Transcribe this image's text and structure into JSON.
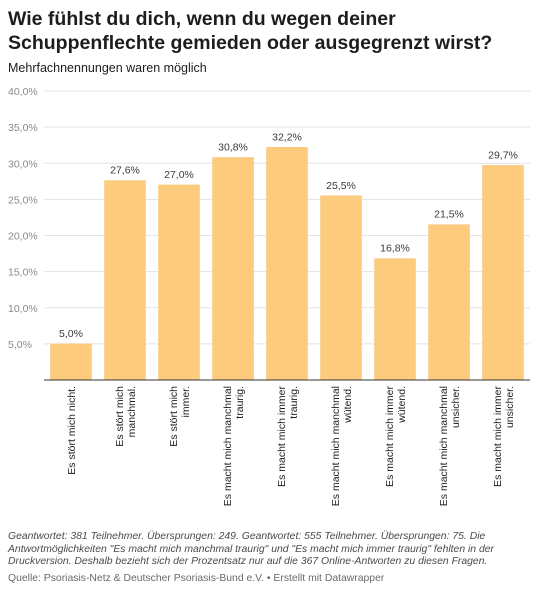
{
  "title": "Wie fühlst du dich, wenn du wegen deiner Schuppenflechte gemieden oder ausgegrenzt wirst?",
  "subtitle": "Mehrfachnennungen waren möglich",
  "notes": "Geantwortet: 381 Teilnehmer. Übersprungen: 249. Geantwortet: 555 Teilnehmer. Übersprungen: 75. Die Antwortmöglichkeiten \"Es macht mich manchmal traurig\" und \"Es macht mich immer traurig\" fehlten in der Druckversion. Deshalb bezieht sich der Prozentsatz nur auf die 367 Online-Antworten zu diesen Fragen.",
  "source": "Quelle: Psoriasis-Netz & Deutscher Psoriasis-Bund e.V. • Erstellt mit Datawrapper",
  "colors": {
    "bar": "#fdcb7e",
    "bar_stroke": "#f7c372",
    "grid": "#e3e3e3",
    "axis": "#333333",
    "tick": "#8a8a8a",
    "label": "#3a3a3a"
  },
  "chart_data": {
    "type": "bar",
    "categories": [
      [
        "Es stört mich nicht."
      ],
      [
        "Es stört mich",
        "manchmal."
      ],
      [
        "Es stört mich",
        "immer."
      ],
      [
        "Es macht mich manchmal",
        "traurig."
      ],
      [
        "Es macht mich immer",
        "traurig."
      ],
      [
        "Es macht mich manchmal",
        "wütend."
      ],
      [
        "Es macht mich immer",
        "wütend."
      ],
      [
        "Es macht mich manchmal",
        "unsicher."
      ],
      [
        "Es macht mich immer",
        "unsicher."
      ]
    ],
    "values": [
      5.0,
      27.6,
      27.0,
      30.8,
      32.2,
      25.5,
      16.8,
      21.5,
      29.7
    ],
    "value_labels": [
      "5,0%",
      "27,6%",
      "27,0%",
      "30,8%",
      "32,2%",
      "25,5%",
      "16,8%",
      "21,5%",
      "29,7%"
    ],
    "ylim": [
      0,
      40
    ],
    "y_ticks": [
      5,
      10,
      15,
      20,
      25,
      30,
      35,
      40
    ],
    "y_tick_labels": [
      "5,0%",
      "10,0%",
      "15,0%",
      "20,0%",
      "25,0%",
      "30,0%",
      "35,0%",
      "40,0%"
    ],
    "grid": true,
    "legend": "none",
    "xlabel": "",
    "ylabel": ""
  }
}
